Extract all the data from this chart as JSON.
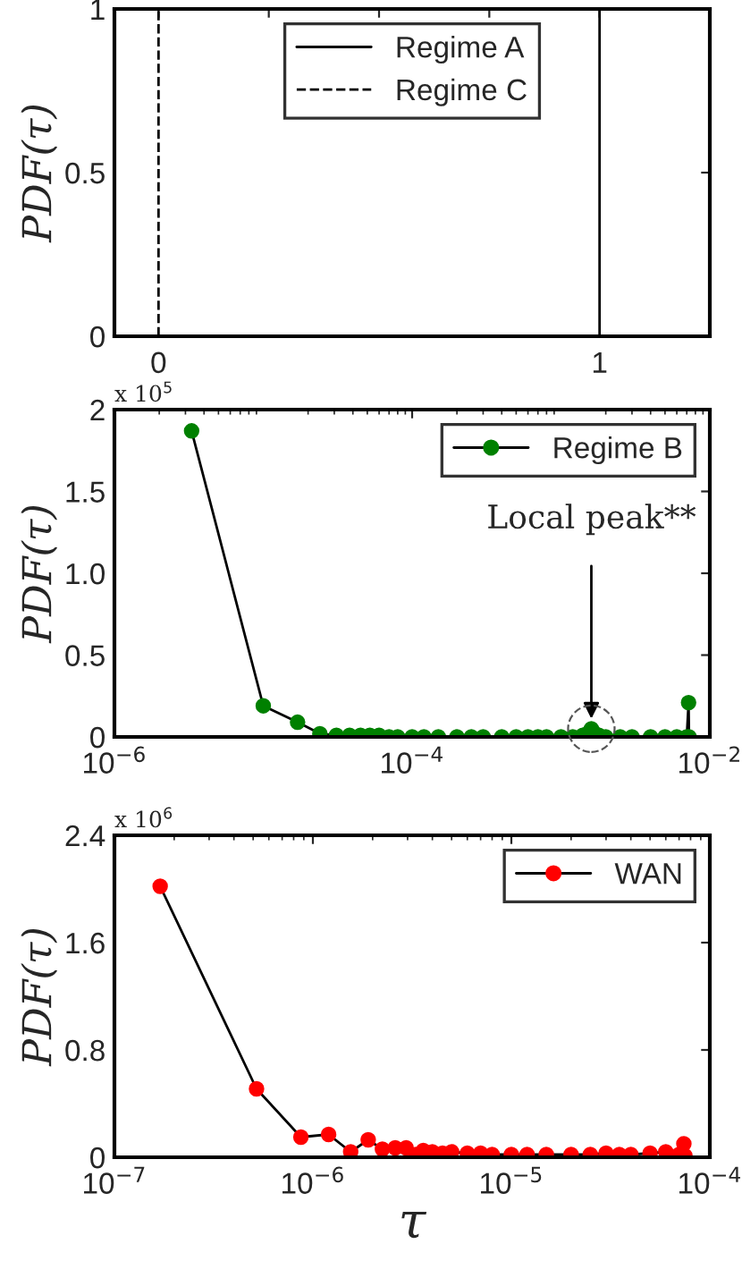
{
  "chart_data": [
    {
      "type": "line",
      "ylabel": "PDF(τ)",
      "xlim": [
        -0.1,
        1.25
      ],
      "xticks": [
        0,
        {
          "value": 0.25,
          "label": null
        },
        {
          "value": 0.5,
          "label": null
        },
        {
          "value": 0.75,
          "label": null
        },
        1
      ],
      "ylim": [
        0,
        1
      ],
      "yticks": [
        0,
        0.5,
        1
      ],
      "legend": "top",
      "grid": false,
      "series": [
        {
          "name": "Regime A",
          "color": "#000000",
          "line_style": "solid",
          "x": [
            1,
            1
          ],
          "values": [
            0,
            1
          ]
        },
        {
          "name": "Regime C",
          "color": "#000000",
          "line_style": "dashed",
          "x": [
            0,
            0
          ],
          "values": [
            0,
            1
          ]
        }
      ]
    },
    {
      "type": "line",
      "ylabel": "PDF(τ)",
      "log": "x",
      "xlim": [
        1e-06,
        0.01
      ],
      "xticks": [
        {
          "value": 1e-06,
          "label": "10$^{−6}$"
        },
        {
          "value": 0.0001,
          "label": "10$^{−4}$"
        },
        {
          "value": 0.01,
          "label": "10$^{−2}$"
        }
      ],
      "ylim": [
        0,
        2
      ],
      "yticks": [
        0,
        0.5,
        {
          "value": 1,
          "label": "1.0"
        },
        1.5,
        2
      ],
      "legend": "top right",
      "grid": false,
      "marker": "circle",
      "annotations": [
        "x 10$^{5}$",
        {
          "text": "Local peak**",
          "x": 0.0016,
          "y": 0.05
        }
      ],
      "series": [
        {
          "name": "Regime B",
          "color": "#008000",
          "x": [
            3.3e-06,
            1e-05,
            1.7e-05,
            2.4e-05,
            3.1e-05,
            3.8e-05,
            4.5e-05,
            5.2e-05,
            6e-05,
            7e-05,
            8e-05,
            0.0001,
            0.00012,
            0.00015,
            0.0002,
            0.00025,
            0.0003,
            0.0004,
            0.0005,
            0.0006,
            0.0007,
            0.0008,
            0.001,
            0.0012,
            0.0014,
            0.0015,
            0.0016,
            0.0017,
            0.0018,
            0.002,
            0.0025,
            0.003,
            0.004,
            0.005,
            0.006,
            0.007,
            0.0072,
            0.00725
          ],
          "values": [
            1.87,
            0.19,
            0.09,
            0.02,
            0.01,
            0.01,
            0.01,
            0.01,
            0.01,
            0,
            0,
            0,
            0,
            0,
            0,
            0,
            0,
            0,
            0,
            0,
            0,
            0,
            0,
            0,
            0.01,
            0.02,
            0.05,
            0.02,
            0.01,
            0,
            0,
            0,
            0,
            0,
            0,
            0,
            0.21,
            0
          ]
        }
      ]
    },
    {
      "type": "line",
      "ylabel": "PDF(τ)",
      "xlabel": "τ",
      "log": "x",
      "xlim": [
        1e-07,
        0.0001
      ],
      "xticks": [
        {
          "value": 1e-07,
          "label": "10$^{−7}$"
        },
        {
          "value": 1e-06,
          "label": "10$^{−6}$"
        },
        {
          "value": 1e-05,
          "label": "10$^{−5}$"
        },
        {
          "value": 0.0001,
          "label": "10$^{−4}$"
        }
      ],
      "ylim": [
        0,
        2.4
      ],
      "yticks": [
        0,
        0.8,
        1.6,
        2.4
      ],
      "legend": "top right",
      "grid": false,
      "marker": "circle",
      "annotations": [
        "x 10$^{6}$"
      ],
      "series": [
        {
          "name": "WAN",
          "color": "#ff0000",
          "x": [
            1.7e-07,
            5.2e-07,
            8.7e-07,
            1.2e-06,
            1.55e-06,
            1.9e-06,
            2.24e-06,
            2.6e-06,
            2.95e-06,
            3.3e-06,
            3.6e-06,
            4e-06,
            4.5e-06,
            5e-06,
            6e-06,
            7e-06,
            8e-06,
            1e-05,
            1.2e-05,
            1.5e-05,
            2e-05,
            2.5e-05,
            3e-05,
            3.5e-05,
            4e-05,
            5e-05,
            6e-05,
            7e-05,
            7.4e-05,
            7.5e-05
          ],
          "values": [
            2.02,
            0.51,
            0.15,
            0.17,
            0.04,
            0.13,
            0.06,
            0.07,
            0.07,
            0.02,
            0.05,
            0.04,
            0.03,
            0.04,
            0.03,
            0.03,
            0.02,
            0.02,
            0.02,
            0.02,
            0.02,
            0.02,
            0.03,
            0.02,
            0.02,
            0.03,
            0.04,
            0.02,
            0.1,
            0.01
          ]
        }
      ]
    }
  ]
}
